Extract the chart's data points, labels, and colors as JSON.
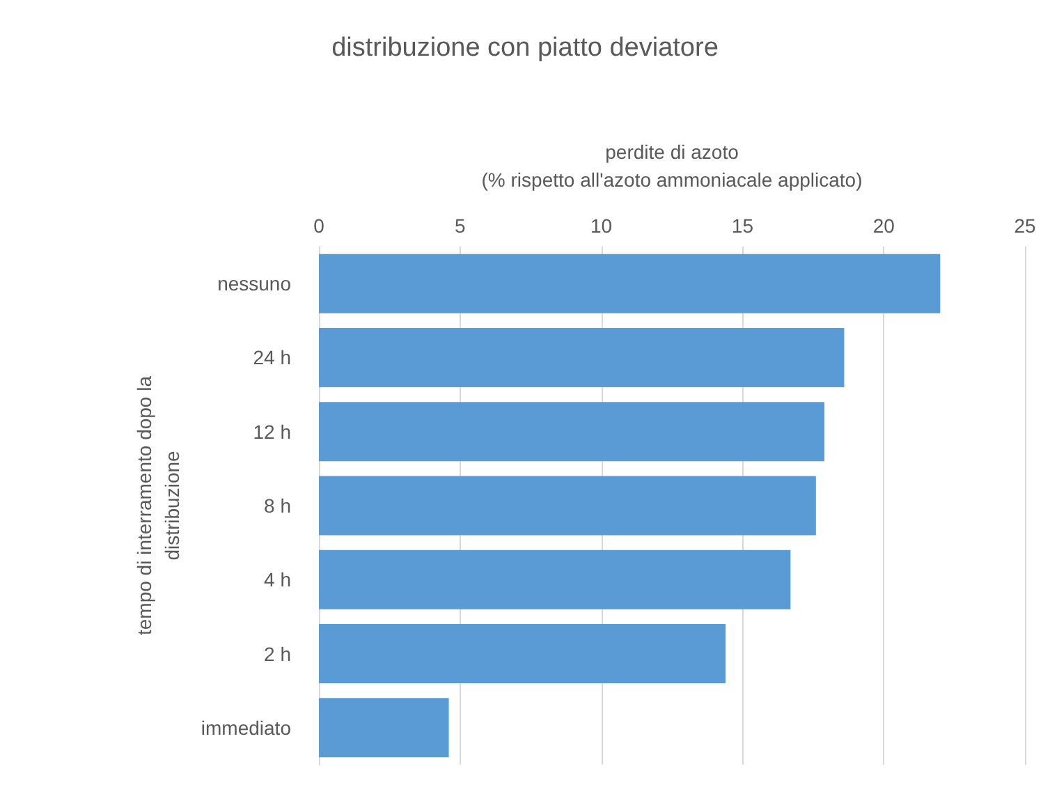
{
  "chart_data": {
    "type": "bar",
    "orientation": "horizontal",
    "title": "distribuzione con piatto deviatore",
    "xlabel": "perdite di azoto\n(% rispetto all'azoto ammoniacale applicato)",
    "ylabel": "tempo di interramento dopo la\ndistribuzione",
    "categories": [
      "nessuno",
      "24 h",
      "12 h",
      "8 h",
      "4 h",
      "2 h",
      "immediato"
    ],
    "values": [
      22.0,
      18.6,
      17.9,
      17.6,
      16.7,
      14.4,
      4.6
    ],
    "color": "#5b9bd5",
    "xlim": [
      0,
      25
    ],
    "xticks": [
      0,
      5,
      10,
      15,
      20,
      25
    ],
    "grid": "x"
  }
}
